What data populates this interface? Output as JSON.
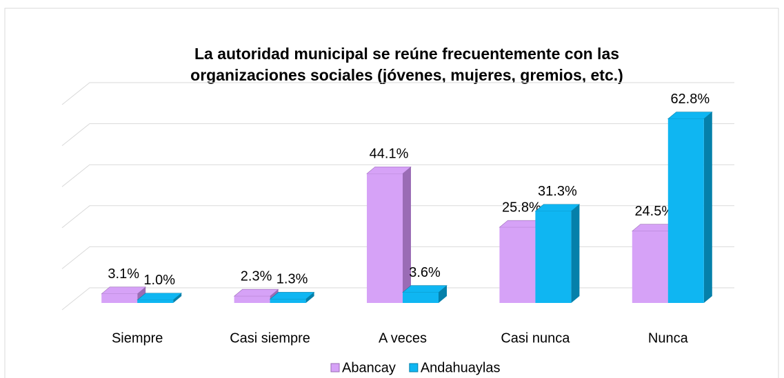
{
  "chart_data": {
    "type": "bar3d",
    "title": [
      "La autoridad municipal se reúne frecuentemente con las",
      "organizaciones sociales (jóvenes, mujeres, gremios, etc.)"
    ],
    "categories": [
      "Siempre",
      "Casi siempre",
      "A veces",
      "Casi nunca",
      "Nunca"
    ],
    "series": [
      {
        "name": "Abancay",
        "color": "#d6a2f7",
        "side": "#9a6cb5",
        "values": [
          3.1,
          2.3,
          44.1,
          25.8,
          24.5
        ],
        "value_labels": [
          "3.1%",
          "2.3%",
          "44.1%",
          "25.8%",
          "24.5%"
        ]
      },
      {
        "name": "Andahuaylas",
        "color": "#0fb6f2",
        "side": "#0580aa",
        "values": [
          1.0,
          1.3,
          3.6,
          31.3,
          62.8
        ],
        "value_labels": [
          "1.0%",
          "1.3%",
          "3.6%",
          "31.3%",
          "62.8%"
        ]
      }
    ],
    "ylim": [
      0,
      70
    ],
    "yticks": [
      0,
      14,
      28,
      42,
      56,
      70
    ],
    "grid": true,
    "legend": "bottom"
  }
}
